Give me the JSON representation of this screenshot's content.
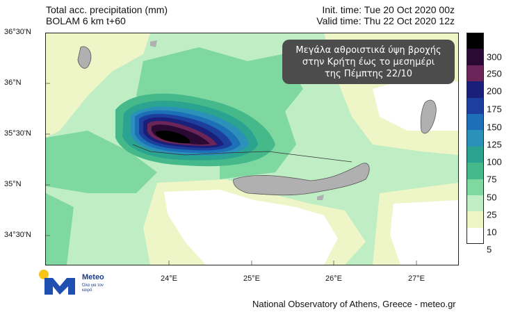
{
  "header": {
    "title": "Total acc. precipitation (mm)",
    "model": "BOLAM 6 km t+60",
    "init_time": "Init. time: Tue 20 Oct 2020 00z",
    "valid_time": "Valid time: Thu 22 Oct 2020 12z"
  },
  "callout": {
    "line1": "Μεγάλα αθροιστικά ύψη βροχής",
    "line2": "στην Κρήτη έως το μεσημέρι",
    "line3": "της Πέμπτης 22/10"
  },
  "axes": {
    "lat_labels": [
      "36°30'N",
      "36°N",
      "35°30'N",
      "35°N",
      "34°30'N"
    ],
    "lon_labels": [
      "24°E",
      "25°E",
      "26°E",
      "27°E"
    ]
  },
  "colorbar": {
    "levels": [
      "300",
      "250",
      "200",
      "175",
      "150",
      "125",
      "100",
      "75",
      "50",
      "25",
      "10",
      "5"
    ],
    "colors": [
      "#000000",
      "#2a0a33",
      "#6b2558",
      "#1a1f7a",
      "#1c3f9e",
      "#1d6fb7",
      "#2b91b8",
      "#2aa391",
      "#46b98a",
      "#7fd8a0",
      "#bfedc4",
      "#eef5c6",
      "#ffffff"
    ]
  },
  "logo": {
    "name": "Meteo",
    "tagline": "Όλα για τον καιρό"
  },
  "footer": {
    "credit": "National Observatory of Athens, Greece - meteo.gr"
  }
}
